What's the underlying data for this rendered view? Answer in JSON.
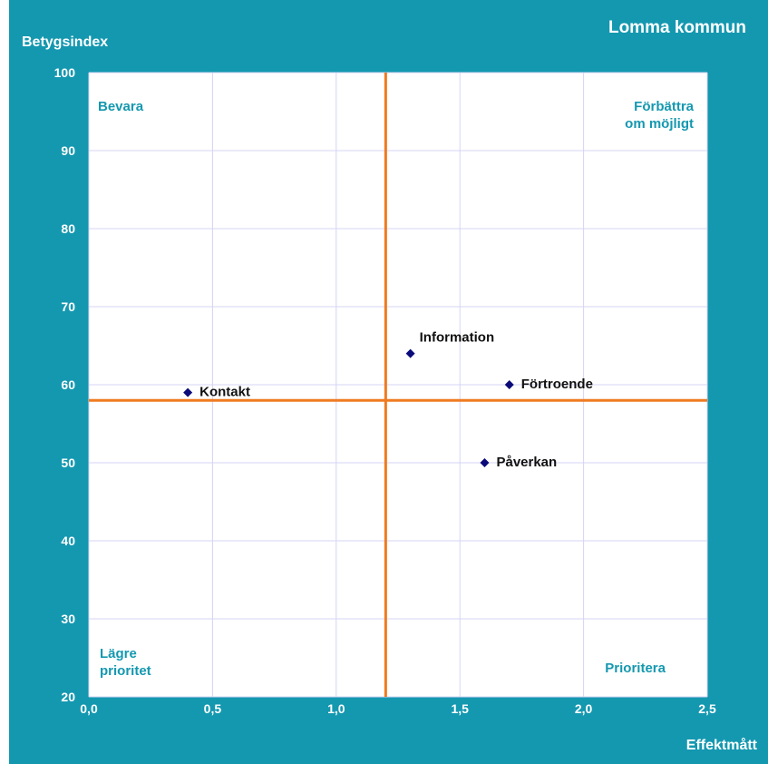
{
  "chart_data": {
    "type": "scatter",
    "title": "Lomma kommun",
    "xlabel": "Effektmått",
    "ylabel": "Betygsindex",
    "xlim": [
      0,
      2.5
    ],
    "ylim": [
      20,
      100
    ],
    "x_ticks": [
      "0,0",
      "0,5",
      "1,0",
      "1,5",
      "2,0",
      "2,5"
    ],
    "y_ticks": [
      "20",
      "30",
      "40",
      "50",
      "60",
      "70",
      "80",
      "90",
      "100"
    ],
    "grid": true,
    "points": [
      {
        "label": "Kontakt",
        "x": 0.4,
        "y": 59
      },
      {
        "label": "Information",
        "x": 1.3,
        "y": 64
      },
      {
        "label": "Förtroende",
        "x": 1.7,
        "y": 60
      },
      {
        "label": "Påverkan",
        "x": 1.6,
        "y": 50
      }
    ],
    "reference_lines": {
      "x": 1.2,
      "y": 58
    },
    "quadrant_labels": {
      "top_left": [
        "Bevara"
      ],
      "top_right": [
        "Förbättra",
        "om möjligt"
      ],
      "bottom_left": [
        "Lägre",
        "prioritet"
      ],
      "bottom_right": [
        "Prioritera"
      ]
    },
    "colors": {
      "frame": "#1498b0",
      "plot_background": "#ffffff",
      "grid": "#d4d4f4",
      "reference_line": "#f07a20",
      "marker": "#0a0a7a",
      "quadrant_text": "#1498b0",
      "frame_text": "#ffffff",
      "point_text": "#111111"
    }
  }
}
